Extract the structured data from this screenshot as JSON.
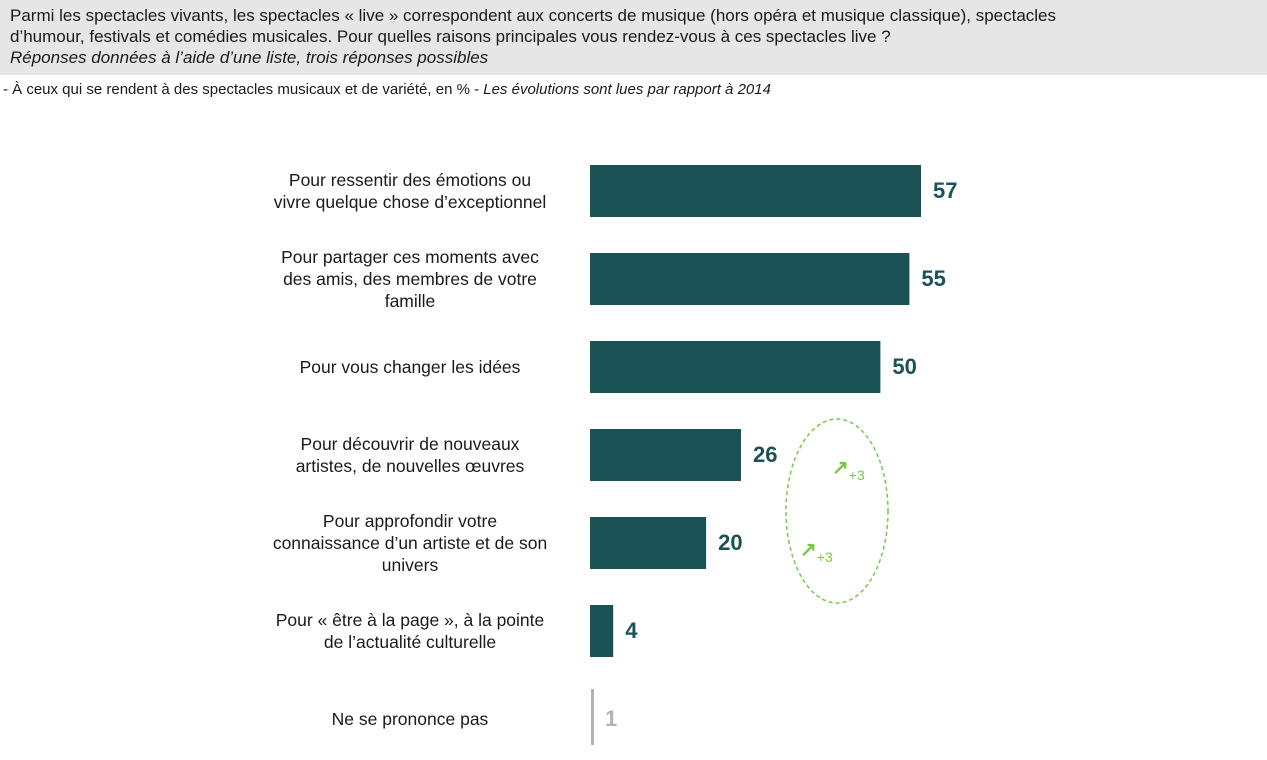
{
  "header": {
    "question_lines": [
      "Parmi les spectacles vivants, les spectacles « live » correspondent aux concerts de musique (hors opéra et musique classique), spectacles",
      "d’humour, festivals et comédies musicales. Pour quelles raisons principales vous rendez-vous à ces spectacles live ?"
    ],
    "instruction": "Réponses données à l’aide d’une liste, trois réponses possibles"
  },
  "base": {
    "text": "- À ceux qui se rendent à des spectacles musicaux et de variété, en % - ",
    "evolution_note": "Les évolutions sont lues par rapport à 2014"
  },
  "colors": {
    "bar": "#1b5256",
    "value_text": "#1b5256",
    "muted": "#b3b3b3",
    "evolution": "#7ac943",
    "header_bg": "#e6e6e6"
  },
  "chart_data": {
    "type": "bar",
    "orientation": "horizontal",
    "categories": [
      [
        "Pour ressentir des émotions ou",
        "vivre quelque chose d’exceptionnel"
      ],
      [
        "Pour partager ces moments avec",
        "des amis, des membres de votre",
        "famille"
      ],
      [
        "Pour vous changer les idées"
      ],
      [
        "Pour découvrir de nouveaux",
        "artistes, de nouvelles œuvres"
      ],
      [
        "Pour approfondir votre",
        "connaissance d’un artiste et de son",
        "univers"
      ],
      [
        "Pour « être à la page », à la pointe",
        "de l’actualité culturelle"
      ],
      [
        "Ne se prononce pas"
      ]
    ],
    "values": [
      57,
      55,
      50,
      26,
      20,
      4,
      1
    ],
    "unit": "%",
    "evolutions": [
      null,
      null,
      null,
      "+3",
      "+3",
      null,
      null
    ],
    "evolution_icon": "up-arrow-icon",
    "muted_category_index": 6,
    "xlim": [
      0,
      57
    ]
  }
}
